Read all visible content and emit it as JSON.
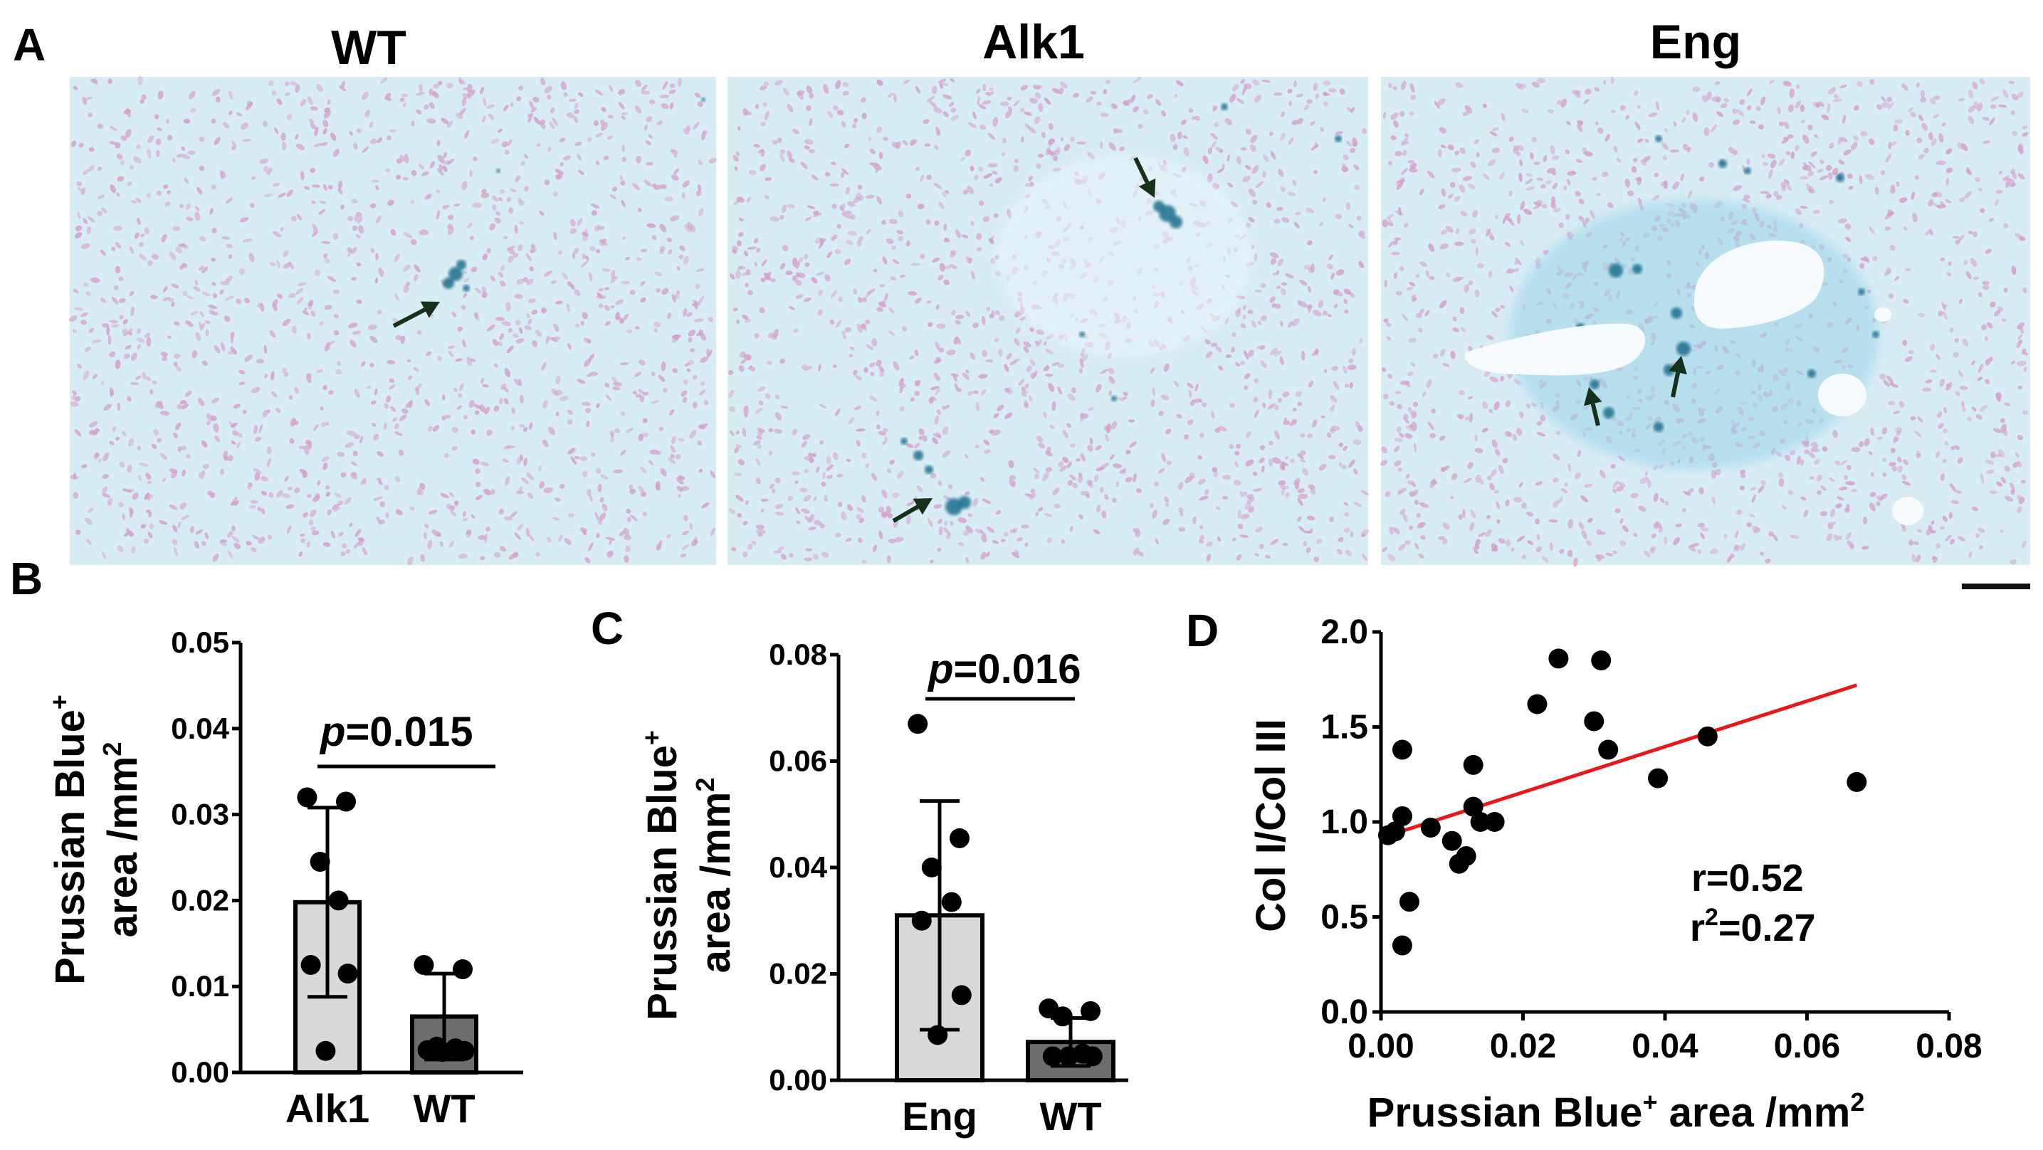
{
  "panel_labels": {
    "a": "A",
    "b": "B",
    "c": "C",
    "d": "D"
  },
  "micrographs": [
    {
      "title": "WT"
    },
    {
      "title": "Alk1"
    },
    {
      "title": "Eng"
    }
  ],
  "colors": {
    "tissue_bg": "#d8ecf4",
    "nuclei": "#d4a0c8",
    "prussian_blue": "#1f6e8c",
    "bar_fill_light": "#d9d9d9",
    "bar_fill_dark": "#6d6d6d",
    "fit_line": "#e8181a",
    "arrow": "#17301c"
  },
  "chart_data": [
    {
      "panel": "B",
      "type": "bar",
      "categories": [
        "Alk1",
        "WT"
      ],
      "values": [
        0.0198,
        0.0065
      ],
      "sd": [
        0.011,
        0.005
      ],
      "points": [
        [
          0.032,
          0.0315,
          0.0245,
          0.02,
          0.0125,
          0.0115,
          0.0025
        ],
        [
          0.0125,
          0.012,
          0.003,
          0.0028,
          0.0026,
          0.0025,
          0.0024
        ]
      ],
      "ylabel": "Prussian Blue+ area /mm2",
      "ylabel_line1": "Prussian Blue",
      "ylabel_sup": "+",
      "ylabel_line2": "area /mm",
      "ylabel_sup2": "2",
      "yticks": [
        "0.00",
        "0.01",
        "0.02",
        "0.03",
        "0.04",
        "0.05"
      ],
      "ylim": [
        0,
        0.05
      ],
      "p_prefix": "p",
      "p_value": "=0.015"
    },
    {
      "panel": "C",
      "type": "bar",
      "categories": [
        "Eng",
        "WT"
      ],
      "values": [
        0.031,
        0.0072
      ],
      "sd": [
        0.0215,
        0.0045
      ],
      "points": [
        [
          0.067,
          0.0455,
          0.04,
          0.0335,
          0.03,
          0.016,
          0.0085
        ],
        [
          0.0135,
          0.013,
          0.012,
          0.005,
          0.0045,
          0.0045,
          0.0045
        ]
      ],
      "ylabel": "Prussian Blue+ area /mm2",
      "ylabel_line1": "Prussian Blue",
      "ylabel_sup": "+",
      "ylabel_line2": "area /mm",
      "ylabel_sup2": "2",
      "yticks": [
        "0.00",
        "0.02",
        "0.04",
        "0.06",
        "0.08"
      ],
      "ylim": [
        0,
        0.08
      ],
      "p_prefix": "p",
      "p_value": "=0.016"
    },
    {
      "panel": "D",
      "type": "scatter",
      "x": [
        0.001,
        0.002,
        0.003,
        0.003,
        0.004,
        0.007,
        0.01,
        0.011,
        0.012,
        0.013,
        0.013,
        0.014,
        0.016,
        0.022,
        0.025,
        0.03,
        0.031,
        0.032,
        0.039,
        0.046,
        0.067
      ],
      "y": [
        0.93,
        0.95,
        1.38,
        1.03,
        0.58,
        0.97,
        0.9,
        0.78,
        0.82,
        1.08,
        1.3,
        1.0,
        1.0,
        1.62,
        1.86,
        1.53,
        1.85,
        1.38,
        1.23,
        1.45,
        1.21
      ],
      "fit_line": {
        "x": [
          0.002,
          0.067
        ],
        "y": [
          0.94,
          1.72
        ]
      },
      "extra_point": {
        "x": 0.003,
        "y": 0.35
      },
      "xlabel": "Prussian Blue+ area /mm2",
      "xlabel_main": "Prussian Blue",
      "xlabel_sup": "+",
      "xlabel_rest": " area /mm",
      "xlabel_sup2": "2",
      "ylabel": "Col I/Col III",
      "xticks": [
        "0.00",
        "0.02",
        "0.04",
        "0.06",
        "0.08"
      ],
      "yticks": [
        "0.0",
        "0.5",
        "1.0",
        "1.5",
        "2.0"
      ],
      "xlim": [
        0,
        0.08
      ],
      "ylim": [
        0,
        2.0
      ],
      "r_text": "r=0.52",
      "r2_prefix": "r",
      "r2_sup": "2",
      "r2_value": "=0.27"
    }
  ]
}
